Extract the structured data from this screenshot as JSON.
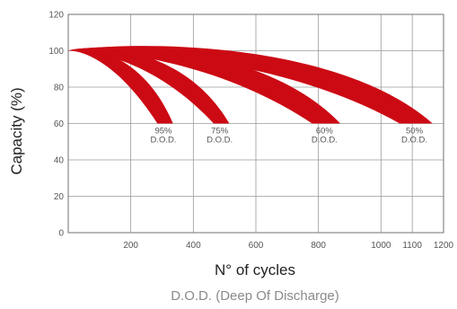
{
  "chart_data": {
    "type": "area",
    "title": "",
    "xlabel": "N° of cycles",
    "ylabel": "Capacity (%)",
    "caption": "D.O.D. (Deep Of Discharge)",
    "xlim": [
      0,
      1200
    ],
    "ylim": [
      0,
      120
    ],
    "xticks": [
      200,
      400,
      600,
      800,
      1000,
      1100,
      1200
    ],
    "yticks": [
      0,
      20,
      40,
      60,
      80,
      100,
      120
    ],
    "grid": true,
    "band_color": "#cc0a14",
    "series": [
      {
        "pct": "95%",
        "dod": "D.O.D.",
        "peak": 102,
        "peak_x": 60,
        "end_x": [
          285,
          335
        ],
        "end_y": 60
      },
      {
        "pct": "75%",
        "dod": "D.O.D.",
        "peak": 103,
        "peak_x": 130,
        "end_x": [
          465,
          515
        ],
        "end_y": 60
      },
      {
        "pct": "60%",
        "dod": "D.O.D.",
        "peak": 104,
        "peak_x": 220,
        "end_x": [
          780,
          870
        ],
        "end_y": 60
      },
      {
        "pct": "50%",
        "dod": "D.O.D.",
        "peak": 105,
        "peak_x": 380,
        "end_x": [
          1060,
          1165
        ],
        "end_y": 60
      }
    ]
  }
}
